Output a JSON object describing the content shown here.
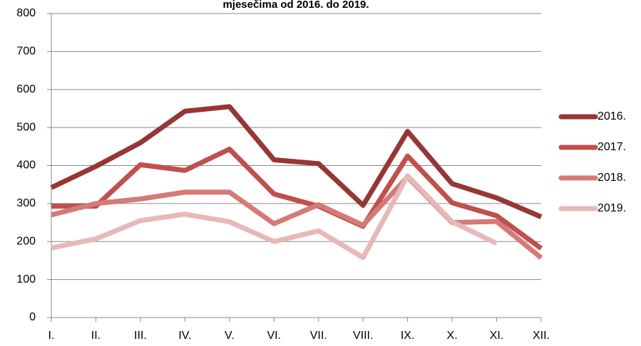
{
  "chart_data": {
    "type": "line",
    "title": "mjesečima od 2016. do 2019.",
    "categories": [
      "I.",
      "II.",
      "III.",
      "IV.",
      "V.",
      "VI.",
      "VII.",
      "VIII.",
      "IX.",
      "X.",
      "XI.",
      "XII."
    ],
    "series": [
      {
        "name": "2016.",
        "color": "#953735",
        "values": [
          342,
          398,
          460,
          543,
          555,
          415,
          405,
          295,
          490,
          352,
          315,
          265
        ]
      },
      {
        "name": "2017.",
        "color": "#c0504d",
        "values": [
          293,
          293,
          402,
          387,
          443,
          325,
          293,
          240,
          425,
          302,
          268,
          182
        ]
      },
      {
        "name": "2018.",
        "color": "#d47a77",
        "values": [
          270,
          300,
          312,
          330,
          330,
          247,
          297,
          243,
          370,
          250,
          253,
          157
        ]
      },
      {
        "name": "2019.",
        "color": "#e6b9b8",
        "values": [
          183,
          207,
          255,
          272,
          252,
          200,
          228,
          158,
          373,
          252,
          195,
          null
        ]
      }
    ],
    "ylim": [
      0,
      800
    ],
    "yticks": [
      0,
      100,
      200,
      300,
      400,
      500,
      600,
      700,
      800
    ],
    "grid": true,
    "legend": "right"
  }
}
